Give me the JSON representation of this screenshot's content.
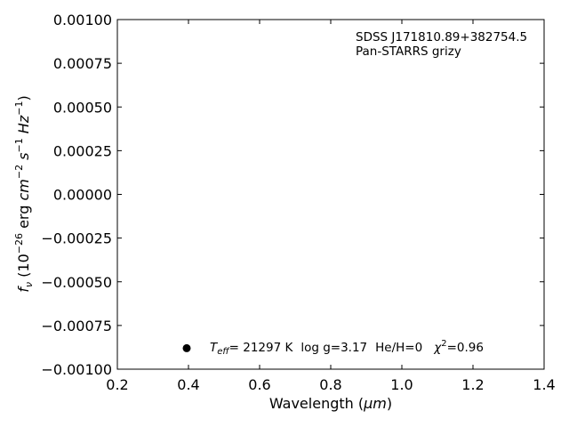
{
  "chart_data": {
    "type": "scatter",
    "title": "",
    "xlabel": {
      "main": "Wavelength (",
      "unit": "μm",
      "close": ")"
    },
    "ylabel": {
      "symbol": "f",
      "symbol_sub": "ν",
      "open": " (10",
      "exp1": "−26",
      "mid": " erg ",
      "cm": "cm",
      "cm_exp": "−2",
      "s": " s",
      "s_exp": "−1",
      "hz": " Hz",
      "hz_exp": "−1",
      "close": ")"
    },
    "xlim": [
      0.2,
      1.4
    ],
    "ylim": [
      -0.001,
      0.001
    ],
    "x_ticks": [
      0.2,
      0.4,
      0.6,
      0.8,
      1.0,
      1.2,
      1.4
    ],
    "x_tick_labels": [
      "0.2",
      "0.4",
      "0.6",
      "0.8",
      "1.0",
      "1.2",
      "1.4"
    ],
    "y_ticks": [
      0.001,
      0.00075,
      0.0005,
      0.00025,
      0,
      -0.00025,
      -0.0005,
      -0.00075,
      -0.001
    ],
    "y_tick_labels": [
      "0.00100",
      "0.00075",
      "0.00050",
      "0.00025",
      "0.00000",
      "−0.00025",
      "−0.00050",
      "−0.00075",
      "−0.00100"
    ],
    "grid": false,
    "series": [
      {
        "points": [
          {
            "x": 0.395,
            "y": -0.00088
          }
        ],
        "color": "#000000",
        "marker": "circle"
      }
    ],
    "annotations": {
      "object_name": "SDSS J171810.89+382754.5",
      "survey": "Pan-STARRS grizy",
      "fit": {
        "teff_symbol": "T",
        "teff_sub": "eff",
        "teff_value": "= 21297 K",
        "logg": "log g=3.17",
        "heh": "He/H=0",
        "chi_symbol": "χ",
        "chi_exp": "2",
        "chi_value": "=0.96"
      }
    }
  }
}
